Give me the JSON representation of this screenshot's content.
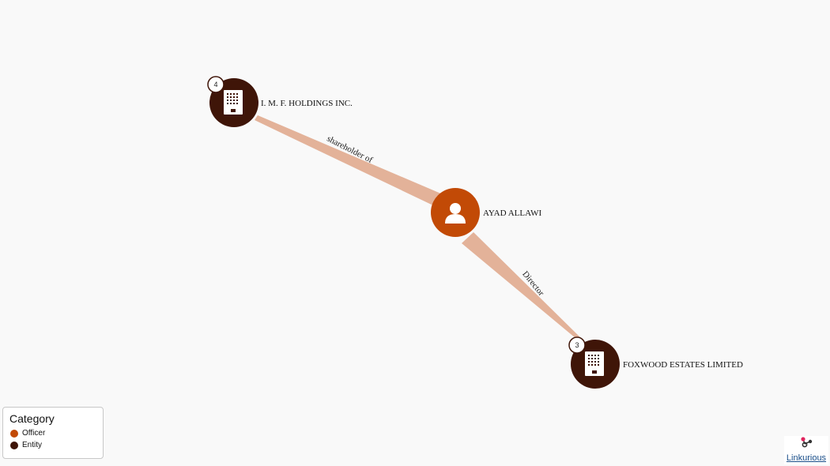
{
  "nodes": {
    "holdings": {
      "label": "I. M. F. HOLDINGS INC.",
      "badge": "4",
      "category": "Entity"
    },
    "officer": {
      "label": "AYAD ALLAWI",
      "category": "Officer"
    },
    "foxwood": {
      "label": "FOXWOOD ESTATES LIMITED",
      "badge": "3",
      "category": "Entity"
    }
  },
  "edges": {
    "shareholder": {
      "label": "shareholder of",
      "from": "AYAD ALLAWI",
      "to": "I. M. F. HOLDINGS INC."
    },
    "director": {
      "label": "Director",
      "from": "AYAD ALLAWI",
      "to": "FOXWOOD ESTATES LIMITED"
    }
  },
  "legend": {
    "title": "Category",
    "items": [
      {
        "label": "Officer",
        "color": "#c24a06"
      },
      {
        "label": "Entity",
        "color": "#3f1508"
      }
    ]
  },
  "colors": {
    "officer": "#c24a06",
    "entity": "#3f1508",
    "edge": "#e3b299",
    "background": "#f9f9f9"
  },
  "brand": {
    "link_text": "Linkurious",
    "icon": "linkurious-logo-icon"
  }
}
